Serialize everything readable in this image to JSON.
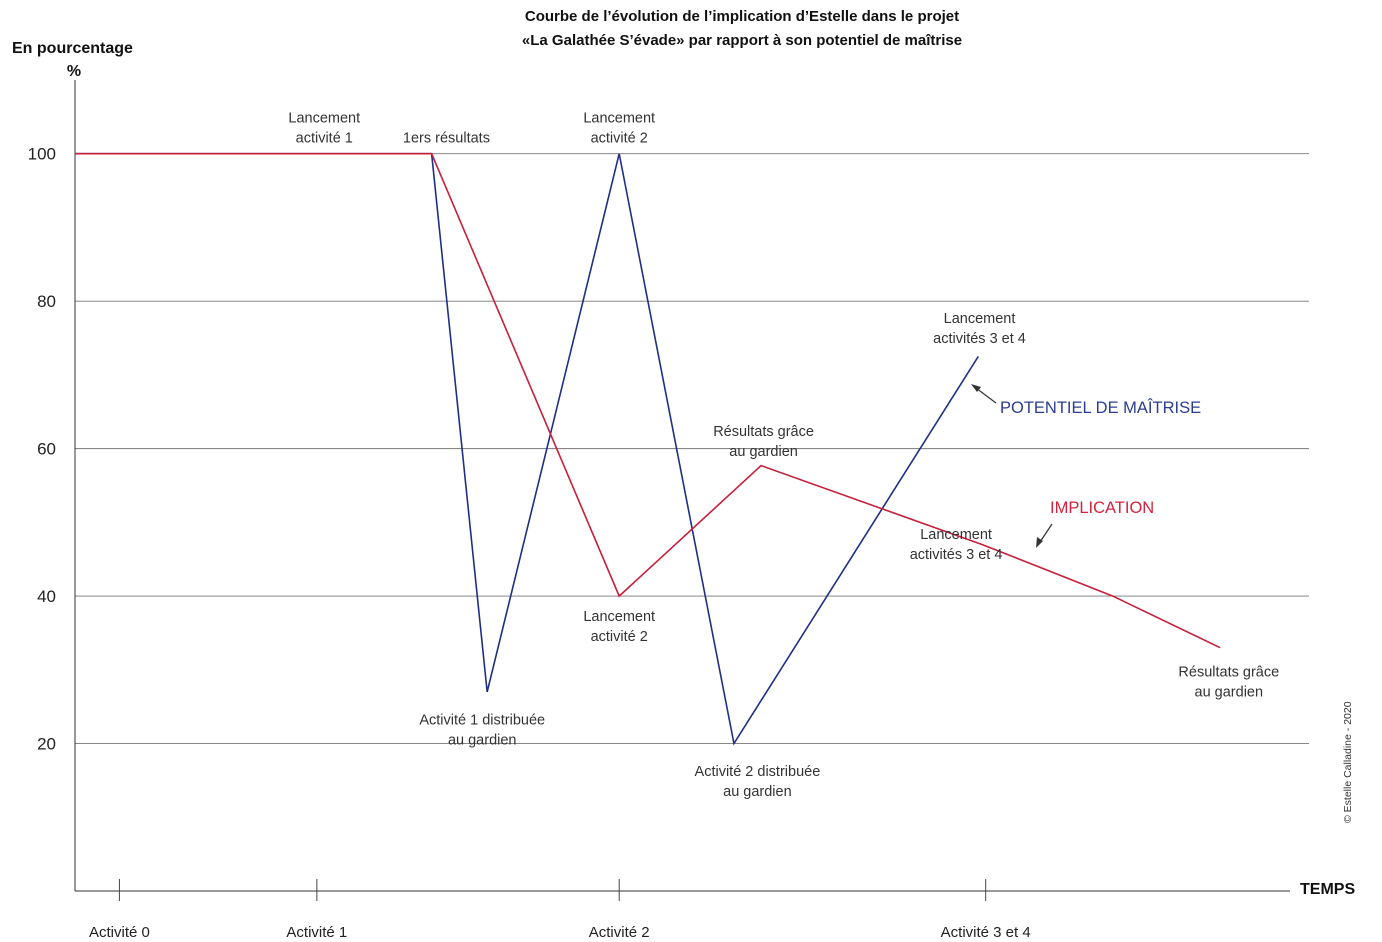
{
  "chart_data": {
    "type": "line",
    "title": [
      "Courbe de l’évolution de l’implication d’Estelle dans le projet",
      "«La Galathée S’évade» par rapport à son potentiel de maîtrise"
    ],
    "ylabel": "En pourcentage",
    "yunit": "%",
    "xlabel": "TEMPS",
    "ylim": [
      0,
      110
    ],
    "yticks": [
      20,
      40,
      60,
      80,
      100
    ],
    "xlim": [
      0,
      100
    ],
    "grid": "horizontal",
    "categories": [
      {
        "label": "Activité 0",
        "x": 3.6
      },
      {
        "label": "Activité 1",
        "x": 19.6
      },
      {
        "label": "Activité 2",
        "x": 44.1
      },
      {
        "label": "Activité 3 et 4",
        "x": 73.8
      }
    ],
    "series": [
      {
        "name": "POTENTIEL DE MAÎTRISE",
        "color": "#1f2f86",
        "points": [
          [
            0,
            100
          ],
          [
            28.9,
            100
          ],
          [
            33.4,
            27
          ],
          [
            44.1,
            100
          ],
          [
            53.4,
            20
          ],
          [
            73.2,
            72.5
          ]
        ]
      },
      {
        "name": "IMPLICATION",
        "color": "#c81f3a",
        "points": [
          [
            0,
            100
          ],
          [
            28.9,
            100
          ],
          [
            44.1,
            40
          ],
          [
            55.6,
            57.7
          ],
          [
            73.5,
            47
          ],
          [
            84.1,
            40
          ],
          [
            92.8,
            33
          ]
        ]
      }
    ],
    "series_label_colors": {
      "blue": "#2b3d93",
      "red": "#d4213d"
    },
    "annotations": [
      {
        "lines": [
          "Lancement",
          "activité 1"
        ],
        "x": 20.2,
        "y": 101.5,
        "anchor": "above"
      },
      {
        "lines": [
          "1ers résultats"
        ],
        "x": 30.1,
        "y": 101.5,
        "anchor": "above"
      },
      {
        "lines": [
          "Lancement",
          "activité 2"
        ],
        "x": 44.1,
        "y": 101.5,
        "anchor": "above"
      },
      {
        "lines": [
          "Activité 1 distribuée",
          "au gardien"
        ],
        "x": 33.0,
        "y": 24.5,
        "anchor": "below"
      },
      {
        "lines": [
          "Lancement",
          "activité 2"
        ],
        "x": 44.1,
        "y": 38.5,
        "anchor": "below"
      },
      {
        "lines": [
          "Activité 2 distribuée",
          "au gardien"
        ],
        "x": 55.3,
        "y": 17.5,
        "anchor": "below"
      },
      {
        "lines": [
          "Résultats grâce",
          "au gardien"
        ],
        "x": 55.8,
        "y": 59.0,
        "anchor": "above"
      },
      {
        "lines": [
          "Lancement",
          "activités 3 et 4"
        ],
        "x": 73.3,
        "y": 74.3,
        "anchor": "above"
      },
      {
        "lines": [
          "Lancement",
          "activités 3 et 4"
        ],
        "x": 71.4,
        "y": 45.0,
        "anchor": "above"
      },
      {
        "lines": [
          "Résultats grâce",
          "au gardien"
        ],
        "x": 93.5,
        "y": 31.0,
        "anchor": "below"
      }
    ],
    "copyright": "© Estelle Calladine - 2020"
  }
}
